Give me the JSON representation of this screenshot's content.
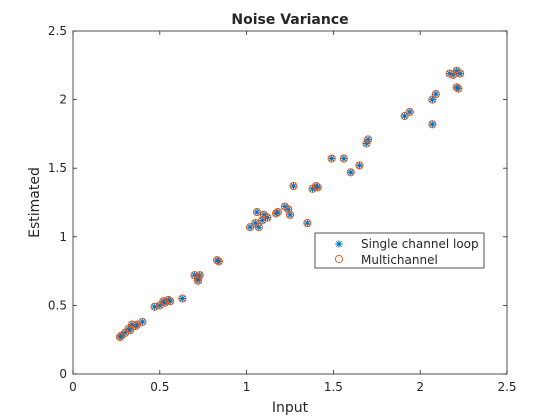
{
  "chart_data": {
    "type": "scatter",
    "title": "Noise Variance",
    "xlabel": "Input",
    "ylabel": "Estimated",
    "xlim": [
      0,
      2.5
    ],
    "ylim": [
      0,
      2.5
    ],
    "xticks": [
      "0",
      "0.5",
      "1",
      "1.5",
      "2",
      "2.5"
    ],
    "yticks": [
      "0",
      "0.5",
      "1",
      "1.5",
      "2",
      "2.5"
    ],
    "grid": false,
    "legend_position": "center-right",
    "series": [
      {
        "name": "Single channel loop",
        "marker": "asterisk",
        "color": "#0072BD",
        "points": [
          [
            0.27,
            0.27
          ],
          [
            0.28,
            0.28
          ],
          [
            0.3,
            0.3
          ],
          [
            0.32,
            0.33
          ],
          [
            0.33,
            0.32
          ],
          [
            0.34,
            0.36
          ],
          [
            0.36,
            0.35
          ],
          [
            0.37,
            0.36
          ],
          [
            0.4,
            0.38
          ],
          [
            0.47,
            0.49
          ],
          [
            0.5,
            0.5
          ],
          [
            0.52,
            0.53
          ],
          [
            0.53,
            0.52
          ],
          [
            0.55,
            0.54
          ],
          [
            0.56,
            0.53
          ],
          [
            0.63,
            0.55
          ],
          [
            0.7,
            0.72
          ],
          [
            0.72,
            0.68
          ],
          [
            0.73,
            0.72
          ],
          [
            0.72,
            0.7
          ],
          [
            0.83,
            0.83
          ],
          [
            0.84,
            0.82
          ],
          [
            1.02,
            1.07
          ],
          [
            1.05,
            1.1
          ],
          [
            1.06,
            1.18
          ],
          [
            1.07,
            1.07
          ],
          [
            1.09,
            1.12
          ],
          [
            1.1,
            1.16
          ],
          [
            1.12,
            1.14
          ],
          [
            1.17,
            1.17
          ],
          [
            1.18,
            1.18
          ],
          [
            1.22,
            1.22
          ],
          [
            1.24,
            1.2
          ],
          [
            1.25,
            1.16
          ],
          [
            1.27,
            1.37
          ],
          [
            1.35,
            1.1
          ],
          [
            1.38,
            1.35
          ],
          [
            1.4,
            1.37
          ],
          [
            1.41,
            1.36
          ],
          [
            1.49,
            1.57
          ],
          [
            1.56,
            1.57
          ],
          [
            1.6,
            1.47
          ],
          [
            1.65,
            1.52
          ],
          [
            1.69,
            1.68
          ],
          [
            1.7,
            1.71
          ],
          [
            1.91,
            1.88
          ],
          [
            1.94,
            1.91
          ],
          [
            2.07,
            1.82
          ],
          [
            2.07,
            2.0
          ],
          [
            2.09,
            2.04
          ],
          [
            2.17,
            2.19
          ],
          [
            2.19,
            2.18
          ],
          [
            2.21,
            2.21
          ],
          [
            2.21,
            2.09
          ],
          [
            2.22,
            2.08
          ],
          [
            2.23,
            2.19
          ]
        ]
      },
      {
        "name": "Multichannel",
        "marker": "circle",
        "color": "#D95319",
        "points": [
          [
            0.27,
            0.27
          ],
          [
            0.28,
            0.28
          ],
          [
            0.3,
            0.3
          ],
          [
            0.32,
            0.33
          ],
          [
            0.33,
            0.32
          ],
          [
            0.34,
            0.36
          ],
          [
            0.36,
            0.35
          ],
          [
            0.37,
            0.36
          ],
          [
            0.4,
            0.38
          ],
          [
            0.47,
            0.49
          ],
          [
            0.5,
            0.5
          ],
          [
            0.52,
            0.53
          ],
          [
            0.53,
            0.52
          ],
          [
            0.55,
            0.54
          ],
          [
            0.56,
            0.53
          ],
          [
            0.63,
            0.55
          ],
          [
            0.7,
            0.72
          ],
          [
            0.72,
            0.68
          ],
          [
            0.73,
            0.72
          ],
          [
            0.72,
            0.7
          ],
          [
            0.83,
            0.83
          ],
          [
            0.84,
            0.82
          ],
          [
            1.02,
            1.07
          ],
          [
            1.05,
            1.1
          ],
          [
            1.06,
            1.18
          ],
          [
            1.07,
            1.07
          ],
          [
            1.09,
            1.12
          ],
          [
            1.1,
            1.16
          ],
          [
            1.12,
            1.14
          ],
          [
            1.17,
            1.17
          ],
          [
            1.18,
            1.18
          ],
          [
            1.22,
            1.22
          ],
          [
            1.24,
            1.2
          ],
          [
            1.25,
            1.16
          ],
          [
            1.27,
            1.37
          ],
          [
            1.35,
            1.1
          ],
          [
            1.38,
            1.35
          ],
          [
            1.4,
            1.37
          ],
          [
            1.41,
            1.36
          ],
          [
            1.49,
            1.57
          ],
          [
            1.56,
            1.57
          ],
          [
            1.6,
            1.47
          ],
          [
            1.65,
            1.52
          ],
          [
            1.69,
            1.68
          ],
          [
            1.7,
            1.71
          ],
          [
            1.91,
            1.88
          ],
          [
            1.94,
            1.91
          ],
          [
            2.07,
            1.82
          ],
          [
            2.07,
            2.0
          ],
          [
            2.09,
            2.04
          ],
          [
            2.17,
            2.19
          ],
          [
            2.19,
            2.18
          ],
          [
            2.21,
            2.21
          ],
          [
            2.21,
            2.09
          ],
          [
            2.22,
            2.08
          ],
          [
            2.23,
            2.19
          ]
        ]
      }
    ]
  }
}
